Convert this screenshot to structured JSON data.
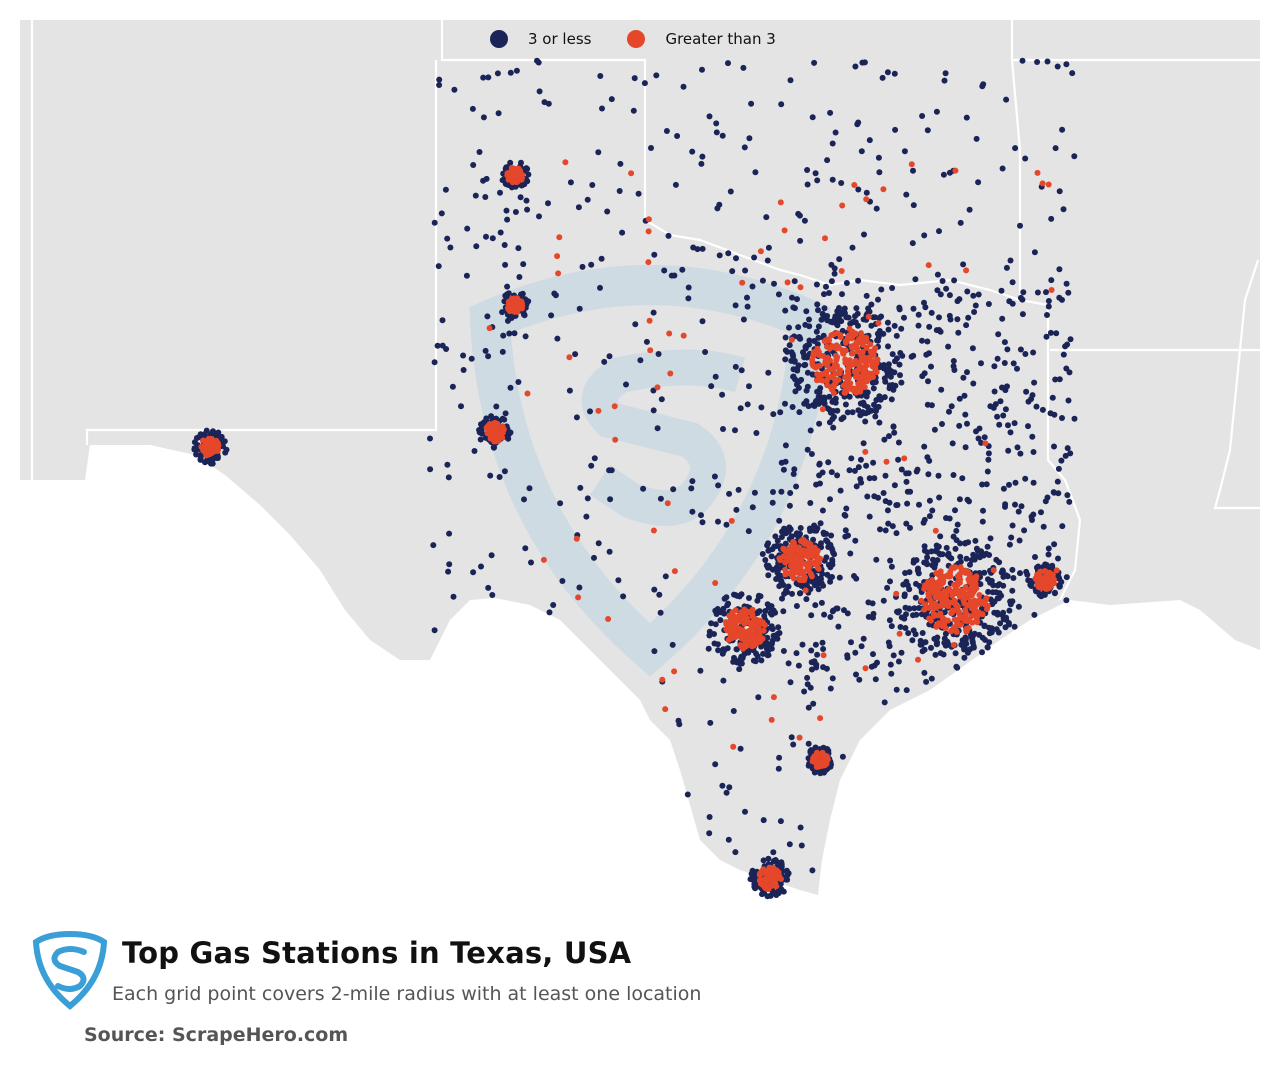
{
  "legend": {
    "low": {
      "label": "3 or less",
      "color": "#1b2457"
    },
    "high": {
      "label": "Greater than 3",
      "color": "#e5472a"
    }
  },
  "footer": {
    "title": "Top Gas Stations in Texas, USA",
    "subtitle": "Each grid point covers 2-mile radius with at least one location",
    "source": "Source: ScrapeHero.com"
  },
  "map_style": {
    "land": "#e4e4e4",
    "water": "#ffffff",
    "borders": "#ffffff",
    "watermark": "#c8d8e2",
    "logo": "#3a9fd6"
  },
  "icons": [
    "scrapehero-logo-icon",
    "scrapehero-watermark-icon"
  ],
  "chart_data": {
    "type": "scatter",
    "title": "Top Gas Stations in Texas, USA",
    "legend_position": "top-center",
    "series": [
      {
        "name": "3 or less",
        "color": "#1b2457"
      },
      {
        "name": "Greater than 3",
        "color": "#e5472a"
      }
    ],
    "hotspots": [
      {
        "label": "",
        "lon": -96.8,
        "lat": 32.8,
        "category": "Greater than 3"
      },
      {
        "label": "",
        "lon": -97.3,
        "lat": 32.75,
        "category": "Greater than 3"
      },
      {
        "label": "",
        "lon": -95.37,
        "lat": 29.76,
        "category": "Greater than 3"
      },
      {
        "label": "",
        "lon": -98.49,
        "lat": 29.42,
        "category": "Greater than 3"
      },
      {
        "label": "",
        "lon": -97.74,
        "lat": 30.27,
        "category": "Greater than 3"
      },
      {
        "label": "",
        "lon": -106.49,
        "lat": 31.76,
        "category": "Greater than 3"
      }
    ]
  }
}
